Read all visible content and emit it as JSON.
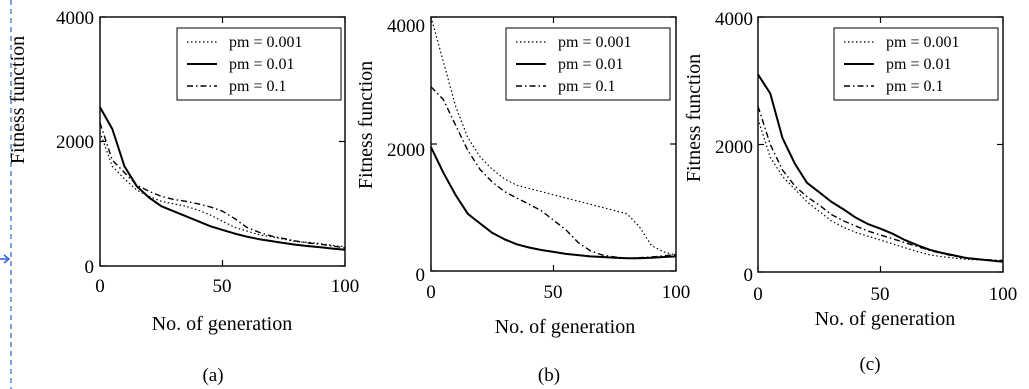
{
  "figure": {
    "guide_color": "#2d5fd6",
    "line_color": "#000000"
  },
  "chart_data": [
    {
      "type": "line",
      "panel_label": "(a)",
      "xlabel": "No. of generation",
      "ylabel": "Fitness function",
      "xlim": [
        0,
        100
      ],
      "ylim": [
        0,
        4000
      ],
      "x_ticks": [
        "0",
        "50",
        "100"
      ],
      "y_ticks": [
        "0",
        "2000",
        "4000"
      ],
      "grid": false,
      "legend_position": "top-right",
      "x": [
        0,
        5,
        10,
        15,
        20,
        25,
        30,
        35,
        40,
        45,
        50,
        55,
        60,
        65,
        70,
        75,
        80,
        85,
        90,
        95,
        100
      ],
      "series": [
        {
          "name": "pm = 0.001",
          "style": "dotted",
          "values": [
            2150,
            1600,
            1400,
            1220,
            1120,
            1040,
            1000,
            960,
            900,
            820,
            720,
            620,
            560,
            500,
            470,
            430,
            390,
            380,
            360,
            330,
            310
          ]
        },
        {
          "name": "pm = 0.01",
          "style": "solid",
          "values": [
            2550,
            2200,
            1600,
            1280,
            1100,
            960,
            880,
            800,
            720,
            640,
            580,
            520,
            470,
            430,
            400,
            370,
            340,
            320,
            300,
            280,
            260
          ]
        },
        {
          "name": "pm = 0.1",
          "style": "dashdot",
          "values": [
            2300,
            1700,
            1500,
            1300,
            1200,
            1120,
            1070,
            1040,
            1000,
            950,
            880,
            760,
            620,
            540,
            480,
            440,
            400,
            370,
            350,
            320,
            290
          ]
        }
      ]
    },
    {
      "type": "line",
      "panel_label": "(b)",
      "xlabel": "No. of generation",
      "ylabel": "Fitness function",
      "xlim": [
        0,
        100
      ],
      "ylim": [
        0,
        4000
      ],
      "x_ticks": [
        "0",
        "50",
        "100"
      ],
      "y_ticks": [
        "0",
        "2000",
        "4000"
      ],
      "grid": false,
      "legend_position": "top-right",
      "x": [
        0,
        5,
        10,
        15,
        20,
        25,
        30,
        35,
        40,
        45,
        50,
        55,
        60,
        65,
        70,
        75,
        80,
        85,
        90,
        95,
        100
      ],
      "series": [
        {
          "name": "pm = 0.001",
          "style": "dotted",
          "values": [
            4000,
            3300,
            2600,
            2100,
            1800,
            1600,
            1450,
            1350,
            1300,
            1250,
            1200,
            1150,
            1100,
            1050,
            1000,
            950,
            900,
            700,
            400,
            300,
            250
          ]
        },
        {
          "name": "pm = 0.01",
          "style": "solid",
          "values": [
            1950,
            1550,
            1200,
            900,
            750,
            600,
            500,
            420,
            370,
            330,
            300,
            270,
            250,
            230,
            220,
            210,
            200,
            200,
            210,
            220,
            230
          ]
        },
        {
          "name": "pm = 0.1",
          "style": "dashdot",
          "values": [
            2900,
            2700,
            2300,
            1900,
            1600,
            1400,
            1250,
            1150,
            1050,
            950,
            800,
            650,
            450,
            320,
            250,
            220,
            200,
            210,
            220,
            240,
            260
          ]
        }
      ]
    },
    {
      "type": "line",
      "panel_label": "(c)",
      "xlabel": "No. of generation",
      "ylabel": "Fitness function",
      "xlim": [
        0,
        100
      ],
      "ylim": [
        0,
        4000
      ],
      "x_ticks": [
        "0",
        "50",
        "100"
      ],
      "y_ticks": [
        "0",
        "2000",
        "4000"
      ],
      "grid": false,
      "legend_position": "top-right",
      "x": [
        0,
        5,
        10,
        15,
        20,
        25,
        30,
        35,
        40,
        45,
        50,
        55,
        60,
        65,
        70,
        75,
        80,
        85,
        90,
        95,
        100
      ],
      "series": [
        {
          "name": "pm = 0.001",
          "style": "dotted",
          "values": [
            2400,
            1800,
            1500,
            1300,
            1100,
            950,
            800,
            700,
            620,
            560,
            500,
            440,
            380,
            320,
            270,
            240,
            220,
            200,
            190,
            180,
            170
          ]
        },
        {
          "name": "pm = 0.01",
          "style": "solid",
          "values": [
            3100,
            2800,
            2100,
            1700,
            1400,
            1250,
            1100,
            980,
            850,
            750,
            680,
            600,
            500,
            420,
            350,
            300,
            260,
            220,
            200,
            180,
            160
          ]
        },
        {
          "name": "pm = 0.1",
          "style": "dashdot",
          "values": [
            2600,
            2000,
            1600,
            1350,
            1180,
            1050,
            900,
            800,
            720,
            640,
            580,
            520,
            460,
            400,
            340,
            290,
            250,
            220,
            200,
            190,
            180
          ]
        }
      ]
    }
  ]
}
